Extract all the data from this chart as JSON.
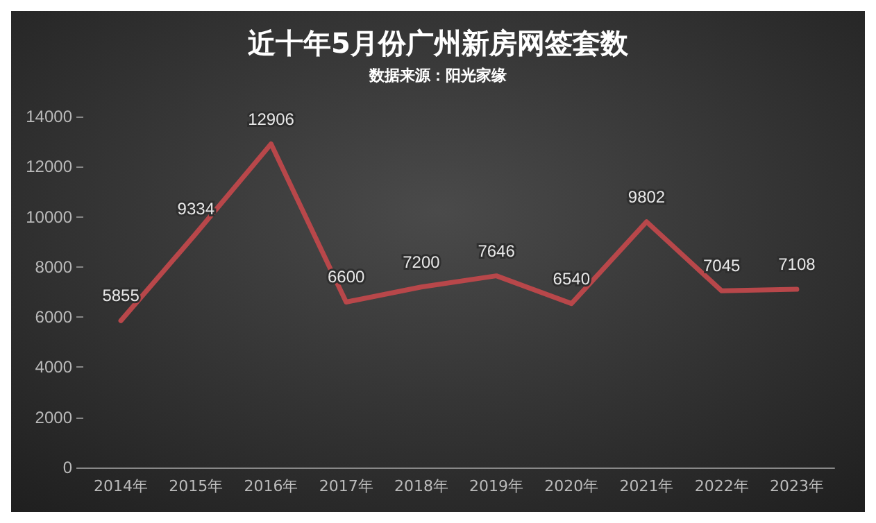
{
  "chart_data": {
    "type": "line",
    "title": "近十年5月份广州新房网签套数",
    "subtitle": "数据来源：阳光家缘",
    "categories": [
      "2014年",
      "2015年",
      "2016年",
      "2017年",
      "2018年",
      "2019年",
      "2020年",
      "2021年",
      "2022年",
      "2023年"
    ],
    "series": [
      {
        "color": "#b8474a",
        "values": [
          5855,
          9334,
          12906,
          6600,
          7200,
          7646,
          6540,
          9802,
          7045,
          7108
        ]
      }
    ],
    "ylim": [
      0,
      14000
    ],
    "yticks": [
      0,
      2000,
      4000,
      6000,
      8000,
      10000,
      12000,
      14000
    ],
    "data_labels": true,
    "marker": "none",
    "line_style": "solid"
  }
}
